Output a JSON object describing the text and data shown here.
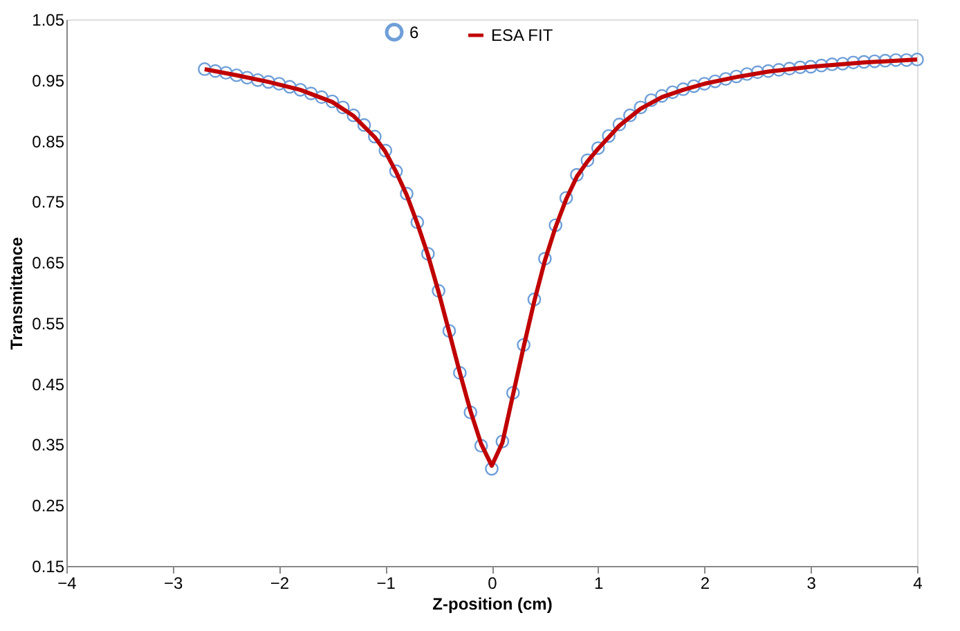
{
  "chart_data": {
    "type": "scatter",
    "xlabel": "Z-position (cm)",
    "ylabel": "Transmittance",
    "xlim": [
      -4,
      4
    ],
    "xticks": [
      -4,
      -3,
      -2,
      -1,
      0,
      1,
      2,
      3,
      4
    ],
    "ylim": [
      0.15,
      1.05
    ],
    "yticks": [
      0.15,
      0.25,
      0.35,
      0.45,
      0.55,
      0.65,
      0.75,
      0.85,
      0.95,
      1.05
    ],
    "grid": false,
    "legend": "top",
    "series": [
      {
        "name": "6",
        "type": "scatter",
        "marker": "circle",
        "color": "#6f9fd8",
        "x": [
          -2.7,
          -2.6,
          -2.5,
          -2.4,
          -2.3,
          -2.2,
          -2.1,
          -2.0,
          -1.9,
          -1.8,
          -1.7,
          -1.6,
          -1.5,
          -1.4,
          -1.3,
          -1.2,
          -1.1,
          -1.0,
          -0.9,
          -0.8,
          -0.7,
          -0.6,
          -0.5,
          -0.4,
          -0.3,
          -0.2,
          -0.1,
          0.0,
          0.1,
          0.2,
          0.3,
          0.4,
          0.5,
          0.6,
          0.7,
          0.8,
          0.9,
          1.0,
          1.1,
          1.2,
          1.3,
          1.4,
          1.5,
          1.6,
          1.7,
          1.8,
          1.9,
          2.0,
          2.1,
          2.2,
          2.3,
          2.4,
          2.5,
          2.6,
          2.7,
          2.8,
          2.9,
          3.0,
          3.1,
          3.2,
          3.3,
          3.4,
          3.5,
          3.6,
          3.7,
          3.8,
          3.9,
          4.0
        ],
        "values": [
          0.968,
          0.965,
          0.962,
          0.958,
          0.954,
          0.95,
          0.947,
          0.944,
          0.939,
          0.934,
          0.928,
          0.922,
          0.915,
          0.905,
          0.892,
          0.876,
          0.857,
          0.834,
          0.8,
          0.763,
          0.716,
          0.664,
          0.603,
          0.537,
          0.468,
          0.403,
          0.348,
          0.31,
          0.355,
          0.435,
          0.514,
          0.589,
          0.656,
          0.711,
          0.756,
          0.794,
          0.818,
          0.838,
          0.858,
          0.877,
          0.892,
          0.905,
          0.917,
          0.924,
          0.93,
          0.935,
          0.94,
          0.944,
          0.948,
          0.952,
          0.956,
          0.96,
          0.963,
          0.965,
          0.967,
          0.969,
          0.971,
          0.972,
          0.974,
          0.976,
          0.977,
          0.979,
          0.98,
          0.981,
          0.982,
          0.983,
          0.983,
          0.984
        ]
      },
      {
        "name": "ESA FIT",
        "type": "line",
        "line_style": "solid",
        "color": "#c00000",
        "x": [
          -2.7,
          -2.4,
          -2.1,
          -1.8,
          -1.5,
          -1.3,
          -1.1,
          -1.0,
          -0.9,
          -0.8,
          -0.7,
          -0.6,
          -0.5,
          -0.4,
          -0.3,
          -0.2,
          -0.1,
          0.0,
          0.1,
          0.2,
          0.3,
          0.4,
          0.5,
          0.6,
          0.7,
          0.8,
          0.9,
          1.0,
          1.2,
          1.4,
          1.6,
          1.8,
          2.0,
          2.3,
          2.6,
          3.0,
          3.5,
          4.0
        ],
        "values": [
          0.968,
          0.958,
          0.947,
          0.934,
          0.914,
          0.891,
          0.856,
          0.832,
          0.799,
          0.761,
          0.714,
          0.662,
          0.601,
          0.535,
          0.468,
          0.405,
          0.351,
          0.315,
          0.353,
          0.432,
          0.511,
          0.586,
          0.653,
          0.708,
          0.754,
          0.791,
          0.816,
          0.837,
          0.875,
          0.903,
          0.922,
          0.934,
          0.944,
          0.955,
          0.964,
          0.972,
          0.979,
          0.984
        ]
      }
    ]
  }
}
